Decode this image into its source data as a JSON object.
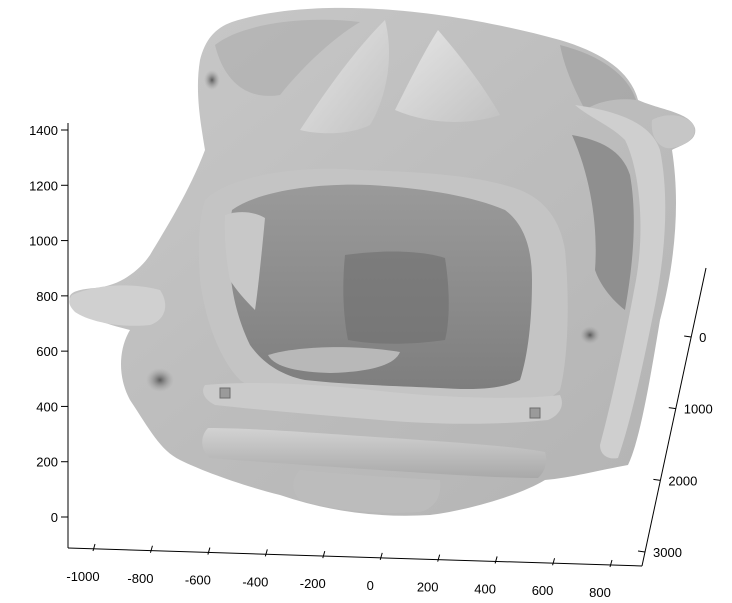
{
  "chart_data": {
    "type": "surface",
    "title": "",
    "xlabel": "",
    "ylabel": "",
    "zlabel": "",
    "grid": false,
    "shading": "grayscale",
    "xlim": [
      -1000,
      800
    ],
    "ylim": [
      -500,
      3000
    ],
    "zlim": [
      -100,
      1450
    ],
    "x_ticks": [
      -1000,
      -800,
      -600,
      -400,
      -200,
      0,
      200,
      400,
      600,
      800
    ],
    "x_tick_labels": [
      "-1000",
      "-800",
      "-600",
      "-400",
      "-200",
      "0",
      "200",
      "400",
      "600",
      "800"
    ],
    "y_ticks": [
      0,
      1000,
      2000,
      3000
    ],
    "y_tick_labels": [
      "0",
      "1000",
      "2000",
      "3000"
    ],
    "z_ticks": [
      0,
      200,
      400,
      600,
      800,
      1000,
      1200,
      1400
    ],
    "z_tick_labels": [
      "0",
      "200",
      "400",
      "600",
      "800",
      "1000",
      "1200",
      "1400"
    ]
  }
}
